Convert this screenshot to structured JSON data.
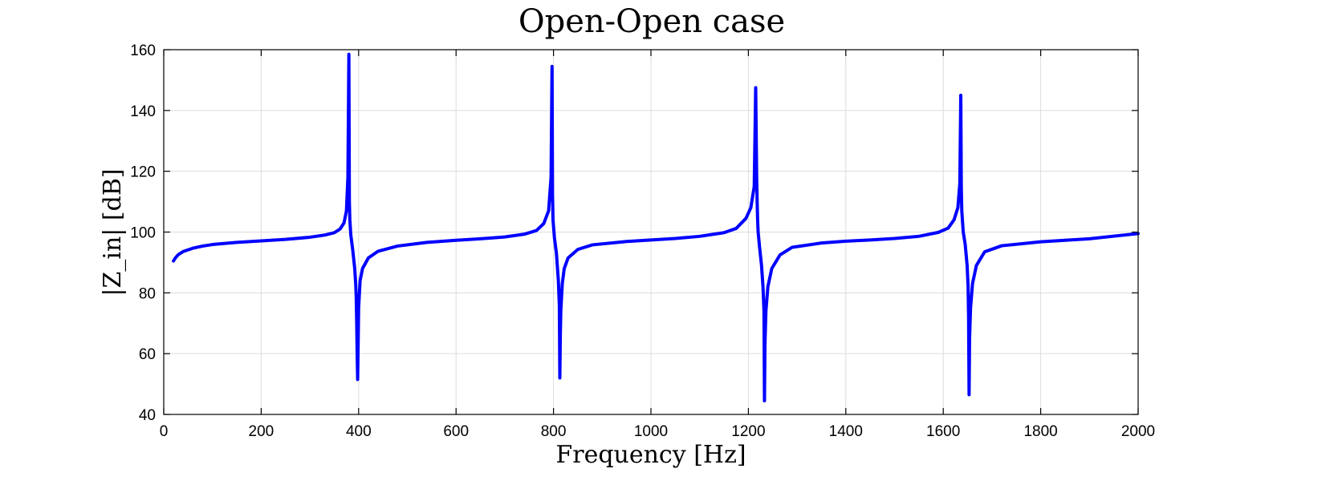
{
  "chart_data": {
    "type": "line",
    "title": "Open-Open case",
    "xlabel": "Frequency [Hz]",
    "ylabel": "|Z_in| [dB]",
    "xlim": [
      0,
      2000
    ],
    "ylim": [
      40,
      160
    ],
    "xticks": [
      0,
      200,
      400,
      600,
      800,
      1000,
      1200,
      1400,
      1600,
      1800,
      2000
    ],
    "yticks": [
      40,
      60,
      80,
      100,
      120,
      140,
      160
    ],
    "grid": true,
    "series": [
      {
        "color": "#0000ff",
        "x": [
          20,
          24,
          30,
          40,
          60,
          80,
          100,
          150,
          200,
          250,
          300,
          330,
          350,
          362,
          370,
          375,
          378,
          380,
          381,
          382,
          384,
          388,
          392,
          394,
          395,
          396,
          397,
          398,
          400,
          403,
          408,
          420,
          440,
          480,
          540,
          600,
          650,
          700,
          740,
          765,
          780,
          790,
          795,
          797,
          798,
          799,
          802,
          806,
          810,
          812,
          813,
          814,
          815,
          818,
          822,
          830,
          850,
          880,
          950,
          1000,
          1050,
          1100,
          1150,
          1175,
          1195,
          1205,
          1212,
          1215,
          1217,
          1218,
          1219,
          1220,
          1223,
          1227,
          1230,
          1232,
          1233,
          1234,
          1236,
          1240,
          1248,
          1265,
          1290,
          1350,
          1400,
          1450,
          1500,
          1550,
          1590,
          1610,
          1622,
          1630,
          1634,
          1636,
          1637,
          1638,
          1641,
          1645,
          1649,
          1651,
          1652,
          1653,
          1654,
          1656,
          1660,
          1668,
          1685,
          1720,
          1800,
          1900,
          2000
        ],
        "values": [
          90.5,
          91.5,
          92.6,
          93.6,
          94.7,
          95.4,
          95.9,
          96.6,
          97.1,
          97.6,
          98.3,
          99.0,
          99.8,
          101.0,
          103.0,
          107.0,
          118.0,
          158.5,
          110.0,
          104.0,
          99.0,
          94.0,
          88.0,
          83.0,
          79.0,
          71.0,
          60.0,
          51.5,
          75.0,
          84.0,
          88.0,
          91.5,
          93.7,
          95.4,
          96.6,
          97.3,
          97.8,
          98.4,
          99.3,
          100.5,
          102.8,
          107.0,
          118.0,
          154.5,
          112.0,
          104.0,
          98.0,
          93.0,
          84.0,
          76.0,
          52.0,
          66.0,
          74.0,
          83.0,
          88.0,
          91.5,
          94.3,
          95.8,
          96.9,
          97.4,
          97.9,
          98.6,
          99.8,
          101.2,
          104.5,
          108.0,
          115.0,
          147.5,
          118.0,
          110.0,
          104.0,
          100.0,
          95.0,
          89.0,
          82.0,
          74.0,
          44.5,
          63.0,
          74.0,
          82.0,
          88.0,
          92.5,
          95.0,
          96.4,
          97.0,
          97.4,
          97.9,
          98.6,
          99.9,
          101.3,
          104.0,
          108.0,
          116.0,
          145.0,
          115.0,
          107.0,
          100.0,
          96.0,
          89.0,
          82.0,
          72.0,
          46.5,
          65.0,
          75.0,
          83.0,
          89.0,
          93.5,
          95.5,
          96.8,
          97.8,
          99.5
        ]
      }
    ]
  }
}
